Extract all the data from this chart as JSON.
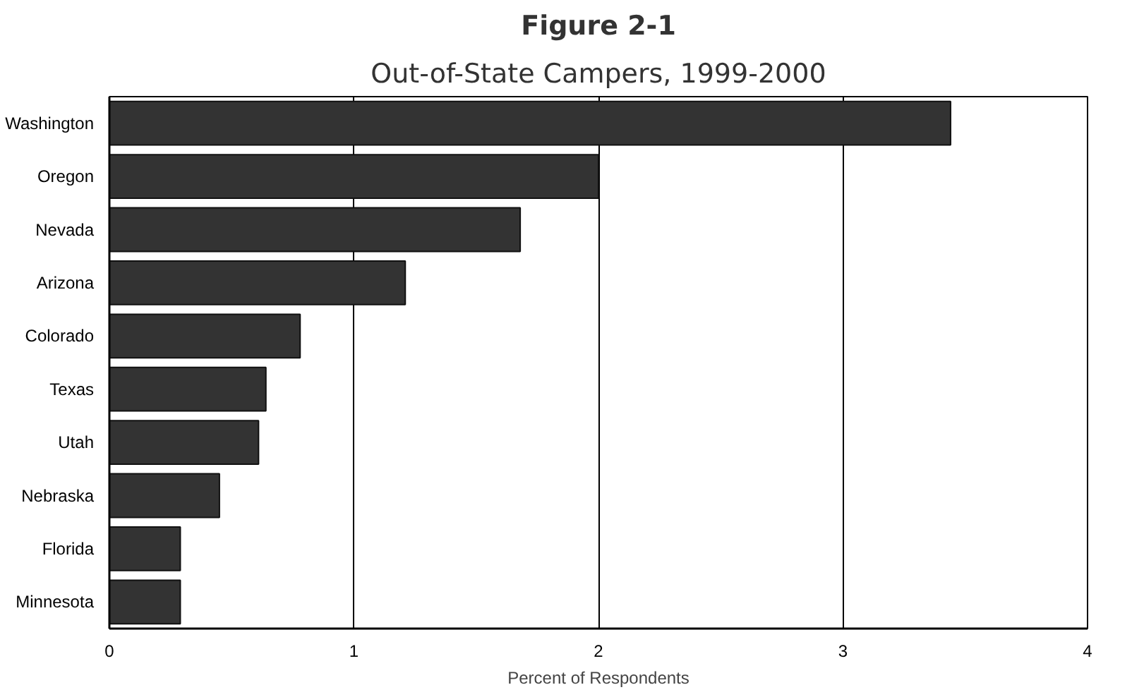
{
  "chart_data": {
    "type": "bar",
    "orientation": "horizontal",
    "title": "Figure 2-1",
    "subtitle": "Out-of-State Campers, 1999-2000",
    "xlabel": "Percent of Respondents",
    "categories": [
      "Washington",
      "Oregon",
      "Nevada",
      "Arizona",
      "Colorado",
      "Texas",
      "Utah",
      "Nebraska",
      "Florida",
      "Minnesota"
    ],
    "values": [
      3.44,
      2.0,
      1.68,
      1.21,
      0.78,
      0.64,
      0.61,
      0.45,
      0.29,
      0.29
    ],
    "color": "#333333",
    "xlim": [
      0,
      4
    ],
    "xticks": [
      0,
      1,
      2,
      3,
      4
    ],
    "grid": "x"
  }
}
